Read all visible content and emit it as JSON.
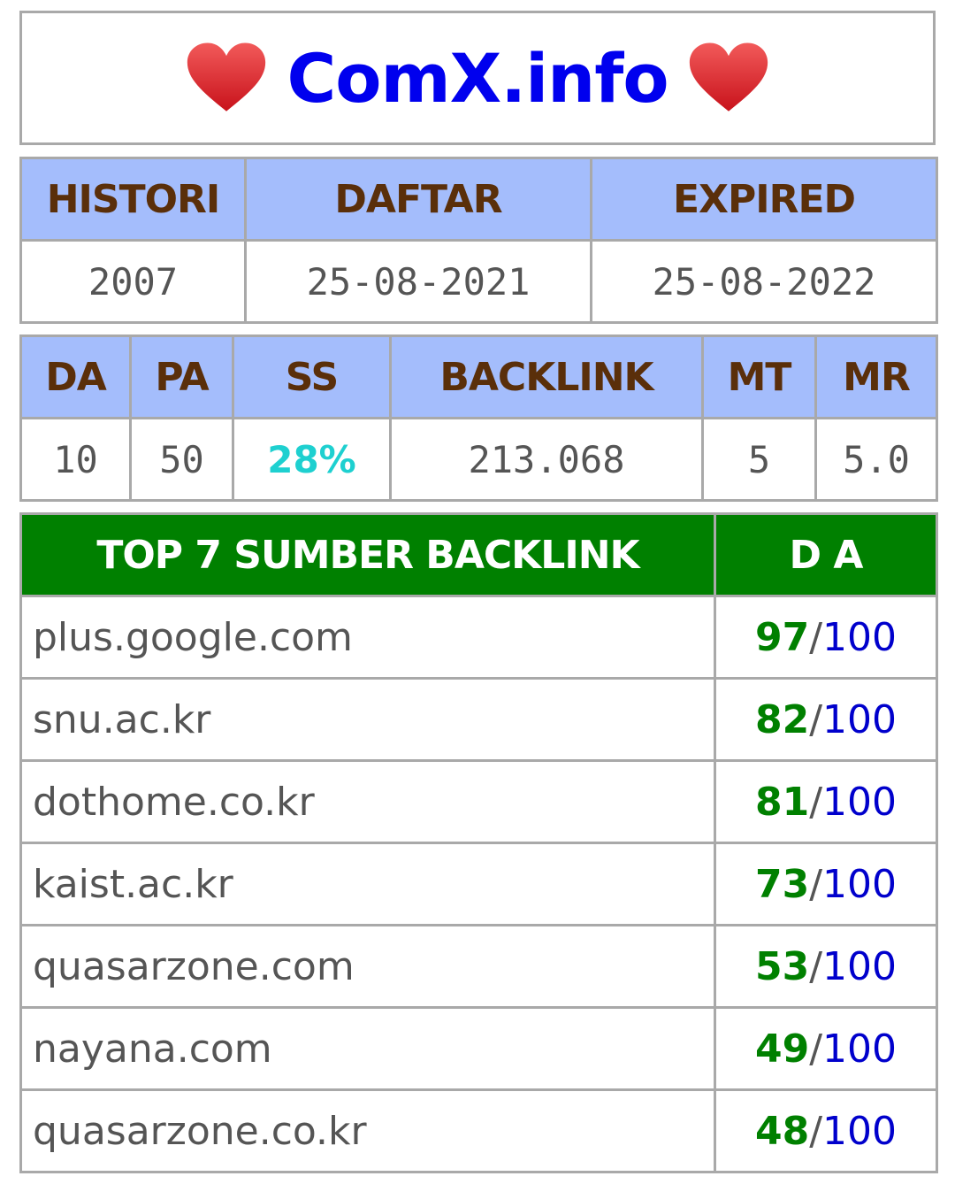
{
  "site": {
    "title": "ComX.info",
    "heart_icon": "red-heart-icon"
  },
  "info_table": {
    "headers": [
      "HISTORI",
      "DAFTAR",
      "EXPIRED"
    ],
    "values": [
      "2007",
      "25-08-2021",
      "25-08-2022"
    ]
  },
  "metrics_table": {
    "headers": [
      "DA",
      "PA",
      "SS",
      "BACKLINK",
      "MT",
      "MR"
    ],
    "values": [
      "10",
      "50",
      "28%",
      "213.068",
      "5",
      "5.0"
    ]
  },
  "backlinks": {
    "header_source": "TOP 7 SUMBER BACKLINK",
    "header_da": "D A",
    "separator": "/",
    "rows": [
      {
        "domain": "plus.google.com",
        "da": "97",
        "max": "100"
      },
      {
        "domain": "snu.ac.kr",
        "da": "82",
        "max": "100"
      },
      {
        "domain": "dothome.co.kr",
        "da": "81",
        "max": "100"
      },
      {
        "domain": "kaist.ac.kr",
        "da": "73",
        "max": "100"
      },
      {
        "domain": "quasarzone.com",
        "da": "53",
        "max": "100"
      },
      {
        "domain": "nayana.com",
        "da": "49",
        "max": "100"
      },
      {
        "domain": "quasarzone.co.kr",
        "da": "48",
        "max": "100"
      }
    ]
  },
  "colors": {
    "title": "#0000ee",
    "header_bg": "#a4bdfc",
    "header_text": "#5a2f0a",
    "green_header": "#008000",
    "ss_value": "#1ed0d0",
    "da_number": "#008000",
    "da_max": "#0000cc"
  }
}
